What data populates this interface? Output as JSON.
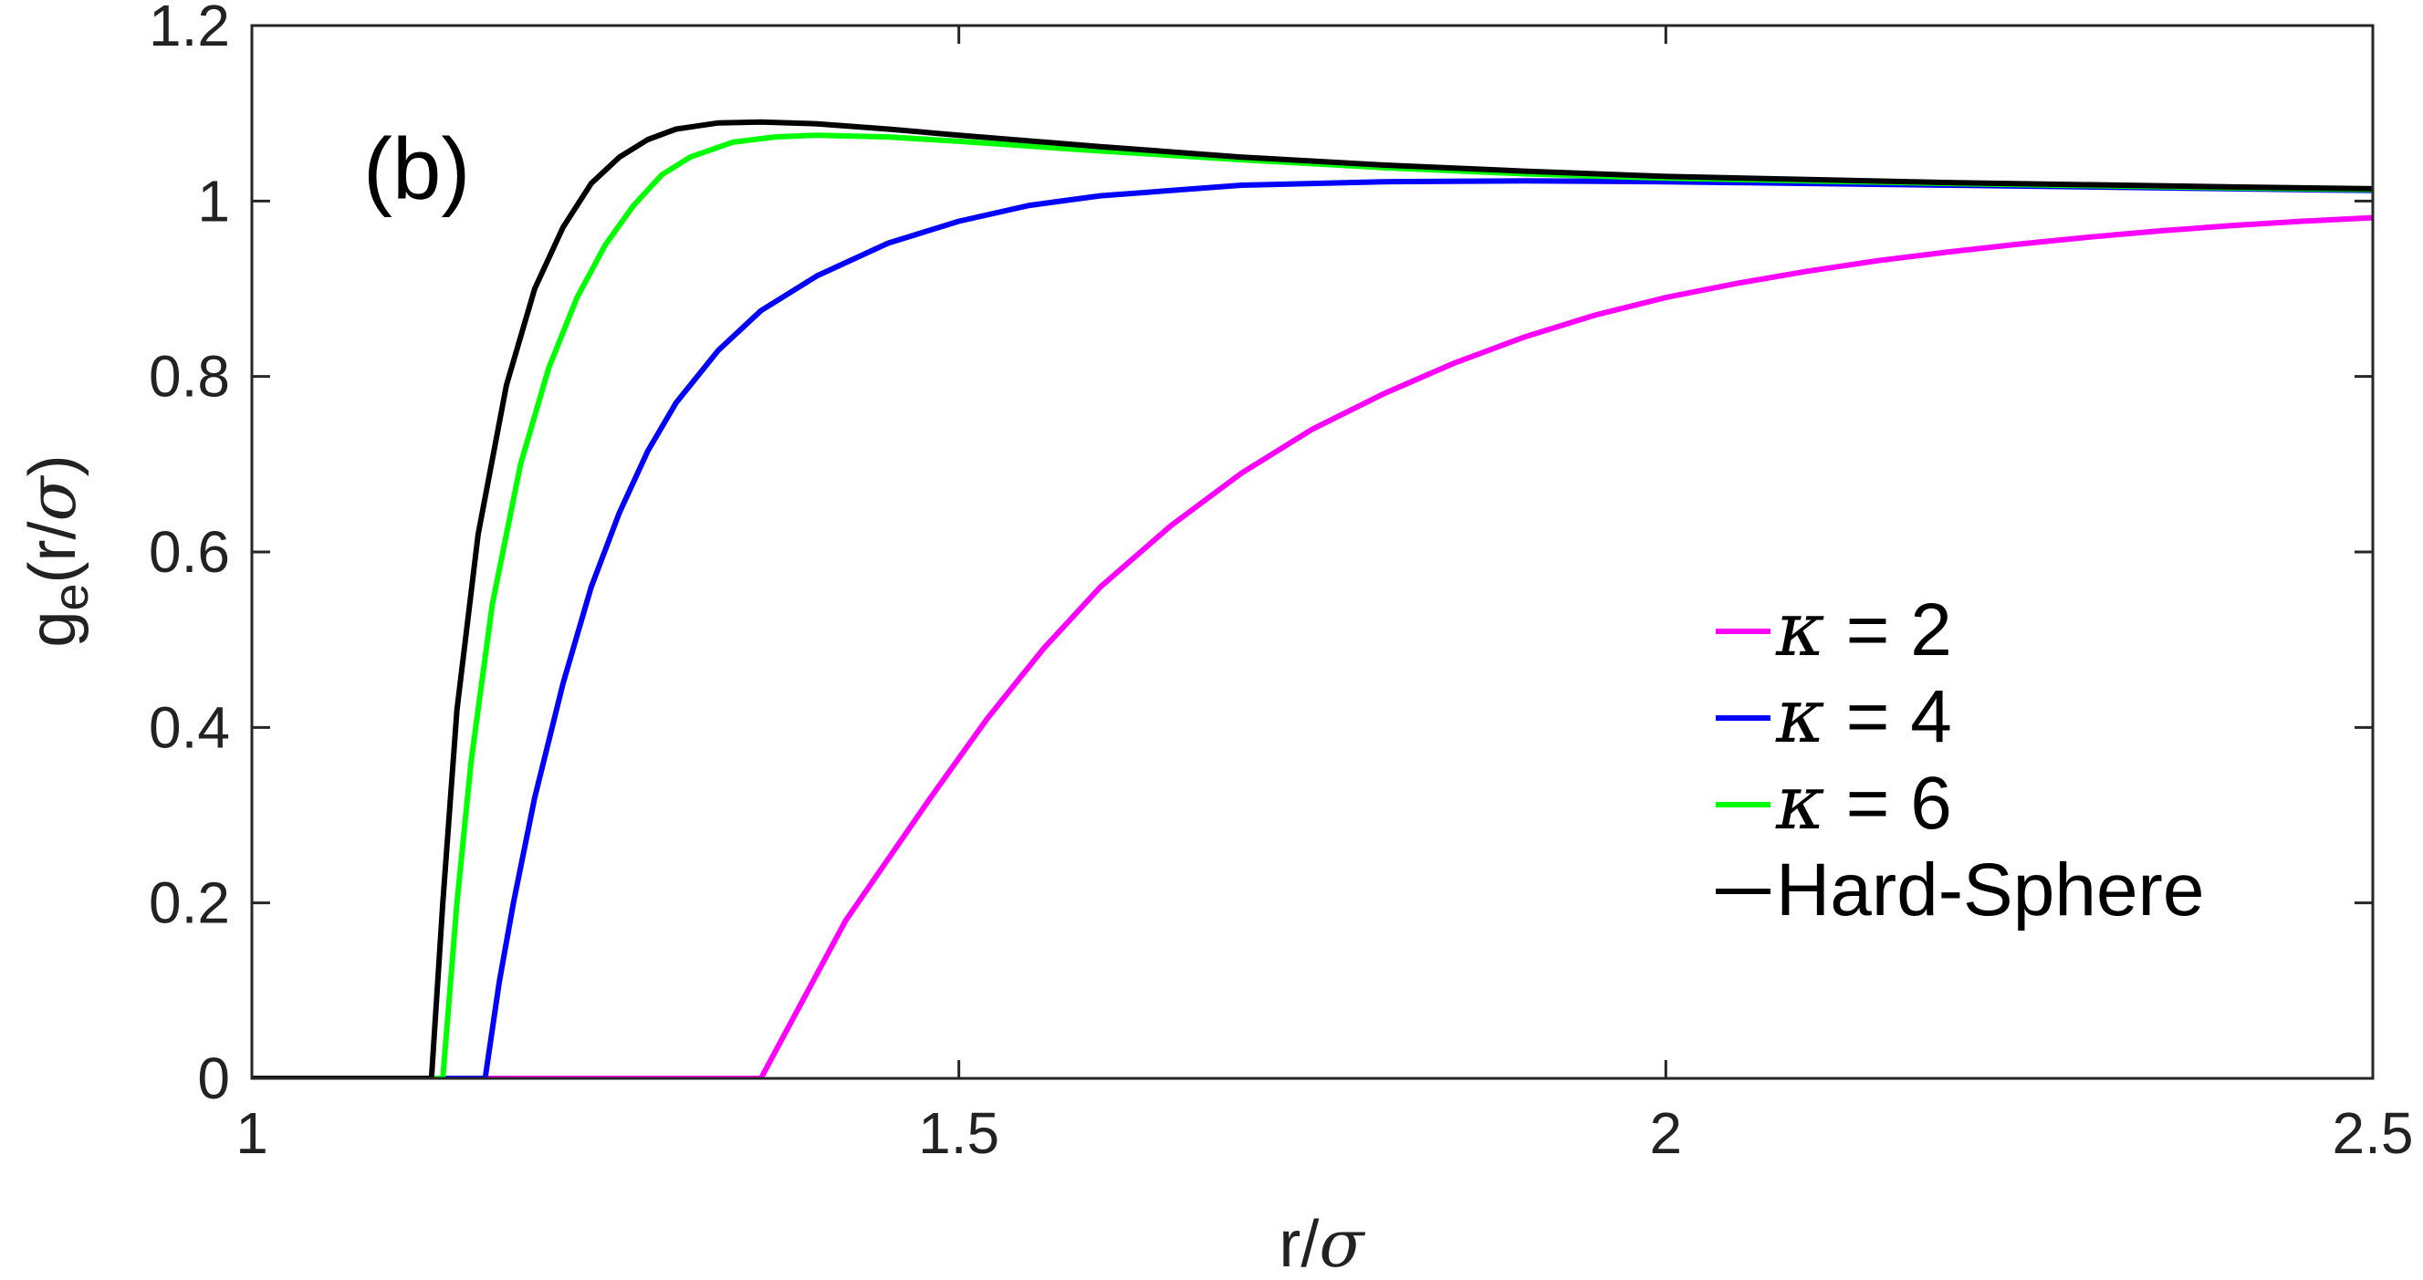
{
  "chart_data": {
    "type": "line",
    "panel_label": "(b)",
    "xlabel": {
      "main": "r/",
      "symbol": "σ"
    },
    "ylabel": {
      "main": "g",
      "sub": "e",
      "rest": "(r/",
      "symbol": "σ",
      "close": ")"
    },
    "xlim": [
      1,
      2.5
    ],
    "ylim": [
      0,
      1.2
    ],
    "xticks": [
      {
        "value": 1,
        "label": "1"
      },
      {
        "value": 1.5,
        "label": "1.5"
      },
      {
        "value": 2,
        "label": "2"
      },
      {
        "value": 2.5,
        "label": "2.5"
      }
    ],
    "yticks": [
      {
        "value": 0,
        "label": "0"
      },
      {
        "value": 0.2,
        "label": "0.2"
      },
      {
        "value": 0.4,
        "label": "0.4"
      },
      {
        "value": 0.6,
        "label": "0.6"
      },
      {
        "value": 0.8,
        "label": "0.8"
      },
      {
        "value": 1,
        "label": "1"
      },
      {
        "value": 1.2,
        "label": "1.2"
      }
    ],
    "grid": false,
    "legend_position": "bottom-right",
    "series": [
      {
        "name": "κ = 2",
        "legend_symbol": "κ",
        "legend_rest": " = 2",
        "color": "#ff00ff",
        "x": [
          1.0,
          1.36,
          1.38,
          1.4,
          1.42,
          1.45,
          1.48,
          1.52,
          1.56,
          1.6,
          1.65,
          1.7,
          1.75,
          1.8,
          1.85,
          1.9,
          1.95,
          2.0,
          2.05,
          2.1,
          2.15,
          2.2,
          2.25,
          2.3,
          2.35,
          2.4,
          2.45,
          2.5
        ],
        "y": [
          0,
          0,
          0.06,
          0.12,
          0.18,
          0.25,
          0.32,
          0.41,
          0.49,
          0.56,
          0.63,
          0.69,
          0.74,
          0.78,
          0.815,
          0.845,
          0.87,
          0.89,
          0.906,
          0.92,
          0.932,
          0.942,
          0.951,
          0.959,
          0.966,
          0.972,
          0.977,
          0.981
        ]
      },
      {
        "name": "κ = 4",
        "legend_symbol": "κ",
        "legend_rest": " = 4",
        "color": "#0000ff",
        "x": [
          1.0,
          1.165,
          1.175,
          1.185,
          1.2,
          1.22,
          1.24,
          1.26,
          1.28,
          1.3,
          1.33,
          1.36,
          1.4,
          1.45,
          1.5,
          1.55,
          1.6,
          1.7,
          1.8,
          1.9,
          2.0,
          2.2,
          2.4,
          2.5
        ],
        "y": [
          0,
          0,
          0.11,
          0.2,
          0.32,
          0.45,
          0.56,
          0.645,
          0.715,
          0.77,
          0.83,
          0.875,
          0.915,
          0.952,
          0.977,
          0.995,
          1.006,
          1.018,
          1.022,
          1.023,
          1.022,
          1.018,
          1.014,
          1.012
        ]
      },
      {
        "name": "κ = 6",
        "legend_symbol": "κ",
        "legend_rest": " = 6",
        "color": "#00ff00",
        "x": [
          1.0,
          1.135,
          1.145,
          1.155,
          1.17,
          1.19,
          1.21,
          1.23,
          1.25,
          1.27,
          1.29,
          1.31,
          1.34,
          1.37,
          1.4,
          1.45,
          1.5,
          1.6,
          1.7,
          1.8,
          1.9,
          2.0,
          2.2,
          2.4,
          2.5
        ],
        "y": [
          0,
          0,
          0.2,
          0.36,
          0.54,
          0.7,
          0.81,
          0.89,
          0.95,
          0.995,
          1.03,
          1.05,
          1.067,
          1.073,
          1.075,
          1.073,
          1.068,
          1.057,
          1.047,
          1.038,
          1.031,
          1.026,
          1.02,
          1.015,
          1.013
        ]
      },
      {
        "name": "Hard-Sphere",
        "legend_symbol": "",
        "legend_rest": "Hard-Sphere",
        "color": "#000000",
        "x": [
          1.0,
          1.127,
          1.135,
          1.145,
          1.16,
          1.18,
          1.2,
          1.22,
          1.24,
          1.26,
          1.28,
          1.3,
          1.33,
          1.36,
          1.4,
          1.45,
          1.5,
          1.6,
          1.7,
          1.8,
          1.9,
          2.0,
          2.2,
          2.4,
          2.5
        ],
        "y": [
          0,
          0,
          0.2,
          0.42,
          0.62,
          0.79,
          0.9,
          0.97,
          1.02,
          1.05,
          1.07,
          1.082,
          1.089,
          1.09,
          1.088,
          1.082,
          1.075,
          1.062,
          1.05,
          1.041,
          1.034,
          1.028,
          1.021,
          1.016,
          1.014
        ]
      }
    ]
  }
}
